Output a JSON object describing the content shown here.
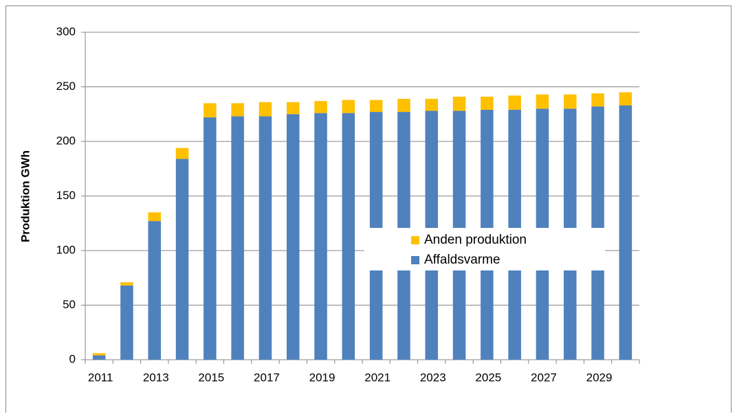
{
  "chart_data": {
    "type": "bar",
    "stacked": true,
    "ylabel": "Produktion GWh",
    "categories": [
      "2011",
      null,
      "2013",
      null,
      "2015",
      null,
      "2017",
      null,
      "2019",
      null,
      "2021",
      null,
      "2023",
      null,
      "2025",
      null,
      "2027",
      null,
      "2029",
      null
    ],
    "series": [
      {
        "name": "Affaldsvarme",
        "color": "#4f81bd",
        "values": [
          4,
          68,
          127,
          184,
          222,
          223,
          223,
          225,
          226,
          226,
          227,
          227,
          228,
          228,
          229,
          229,
          230,
          230,
          232,
          233
        ]
      },
      {
        "name": "Anden produktion",
        "color": "#ffc000",
        "values": [
          2,
          3,
          8,
          10,
          13,
          12,
          13,
          11,
          11,
          12,
          11,
          12,
          11,
          13,
          12,
          13,
          13,
          13,
          12,
          12
        ]
      }
    ],
    "ylim": [
      0,
      300
    ],
    "yticks": [
      0,
      50,
      100,
      150,
      200,
      250,
      300
    ],
    "grid": true
  }
}
